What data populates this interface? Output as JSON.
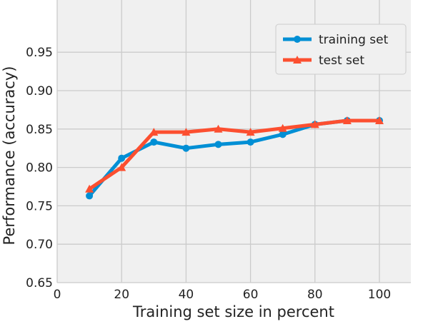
{
  "chart_data": {
    "type": "line",
    "title": "",
    "xlabel": "Training set size in percent",
    "ylabel": "Performance (accuracy)",
    "xlim": [
      0,
      110
    ],
    "ylim": [
      0.65,
      0.99
    ],
    "xticks": [
      0,
      20,
      40,
      60,
      80,
      100
    ],
    "yticks": [
      "0.65",
      "0.70",
      "0.75",
      "0.80",
      "0.85",
      "0.90",
      "0.95"
    ],
    "grid": true,
    "legend_position": "top-right",
    "x": [
      10,
      20,
      30,
      40,
      50,
      60,
      70,
      80,
      90,
      100
    ],
    "series": [
      {
        "name": "training set",
        "color": "#008fd5",
        "marker": "circle",
        "values": [
          0.763,
          0.812,
          0.833,
          0.825,
          0.83,
          0.833,
          0.843,
          0.856,
          0.861,
          0.861
        ]
      },
      {
        "name": "test set",
        "color": "#fc4f30",
        "marker": "triangle",
        "values": [
          0.772,
          0.8,
          0.846,
          0.846,
          0.85,
          0.846,
          0.851,
          0.856,
          0.861,
          0.861
        ]
      }
    ]
  }
}
